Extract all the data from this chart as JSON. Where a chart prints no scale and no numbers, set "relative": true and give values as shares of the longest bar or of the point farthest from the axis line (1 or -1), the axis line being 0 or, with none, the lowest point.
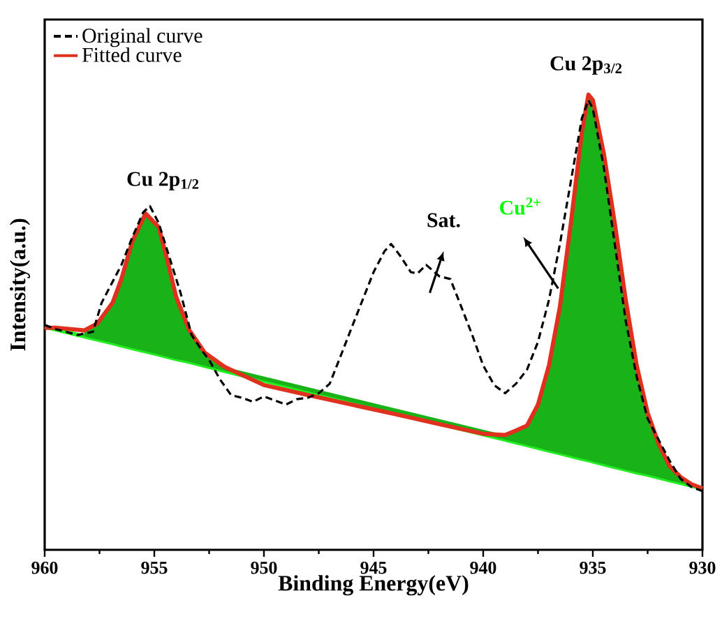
{
  "chart_data": {
    "type": "line",
    "relative": true,
    "xlabel": "Binding Energy(eV)",
    "ylabel": "Intensity(a.u.)",
    "xlim": [
      960,
      930
    ],
    "xticks": [
      960,
      955,
      950,
      945,
      940,
      935,
      930
    ],
    "legend": "top left",
    "marker": "none",
    "series": [
      {
        "color": "#22ee22",
        "line_style": "solid",
        "x": [
          960,
          958.2,
          957.6,
          956.9,
          956.5,
          956,
          955.4,
          954.8,
          954.4,
          954,
          953.4,
          952.7,
          951.8,
          939,
          938.5,
          938,
          937.5,
          937,
          936.5,
          936,
          935.5,
          935.2,
          935,
          934.5,
          934,
          933.5,
          933,
          932.5,
          932,
          931.5,
          931,
          930.5,
          930
        ],
        "values": [
          0.49,
          0.469,
          0.462,
          0.454,
          0.449,
          0.443,
          0.436,
          0.429,
          0.424,
          0.419,
          0.413,
          0.404,
          0.393,
          0.242,
          0.236,
          0.23,
          0.224,
          0.2178,
          0.212,
          0.206,
          0.2,
          0.197,
          0.194,
          0.188,
          0.182,
          0.176,
          0.17,
          0.165,
          0.159,
          0.1527,
          0.147,
          0.141,
          0.135
        ],
        "lower": [
          null,
          0.469,
          0.462,
          0.454,
          0.449,
          0.443,
          0.436,
          0.429,
          0.424,
          0.419,
          0.413,
          0.404,
          0.393,
          0.242,
          0.236,
          0.23,
          0.224,
          0.2178,
          0.212,
          0.206,
          0.2,
          0.197,
          0.194,
          0.188,
          0.182,
          0.176,
          0.17,
          0.165,
          0.159,
          0.1527,
          0.147,
          0.141,
          0.135
        ],
        "upper": [
          null,
          0.482,
          0.497,
          0.543,
          0.595,
          0.678,
          0.739,
          0.709,
          0.635,
          0.555,
          0.482,
          0.433,
          0.402,
          0.252,
          0.262,
          0.273,
          0.319,
          0.405,
          0.534,
          0.718,
          0.917,
          1.0,
          0.988,
          0.871,
          0.718,
          0.549,
          0.405,
          0.301,
          0.233,
          0.184,
          0.16,
          0.144,
          0.135
        ]
      },
      {
        "name": "Fitted curve",
        "color": "#e0301e",
        "line_style": "solid",
        "x": [
          960,
          959.5,
          958.2,
          957.6,
          956.9,
          956.5,
          956,
          955.4,
          954.8,
          954.4,
          954,
          953.4,
          952.7,
          951.8,
          950,
          948,
          946,
          944,
          942,
          940,
          939,
          938.5,
          938,
          937.5,
          937,
          936.5,
          936,
          935.5,
          935.2,
          935,
          934.5,
          934,
          933.5,
          933,
          932.5,
          932,
          931.5,
          931,
          930.5,
          930
        ],
        "values": [
          0.488,
          0.488,
          0.482,
          0.497,
          0.543,
          0.595,
          0.678,
          0.739,
          0.709,
          0.635,
          0.555,
          0.482,
          0.433,
          0.402,
          0.362,
          0.34,
          0.319,
          0.298,
          0.276,
          0.255,
          0.252,
          0.262,
          0.273,
          0.319,
          0.405,
          0.534,
          0.718,
          0.917,
          1.0,
          0.988,
          0.871,
          0.718,
          0.549,
          0.405,
          0.301,
          0.233,
          0.184,
          0.16,
          0.144,
          0.135
        ]
      },
      {
        "name": "Original curve",
        "color": "#000000",
        "line_style": "dashed",
        "x": [
          960,
          959.5,
          958.5,
          957.8,
          957.4,
          956.5,
          956,
          955.5,
          955.2,
          954.8,
          954.3,
          953.8,
          953.3,
          952.8,
          952.5,
          952,
          951.5,
          951,
          950.5,
          950,
          949,
          948.5,
          948,
          947.5,
          947,
          946.5,
          946,
          945.5,
          945,
          944.5,
          944.2,
          943.8,
          943.3,
          943,
          942.6,
          942,
          941.5,
          941,
          940.5,
          940,
          939.5,
          939,
          938.5,
          938,
          937.5,
          937,
          936.5,
          936,
          935.5,
          935.2,
          935,
          934.5,
          934,
          933.5,
          933,
          932.5,
          932,
          931.5,
          931,
          930.5,
          930
        ],
        "values": [
          0.494,
          0.485,
          0.472,
          0.479,
          0.543,
          0.626,
          0.687,
          0.742,
          0.755,
          0.718,
          0.641,
          0.564,
          0.472,
          0.436,
          0.417,
          0.374,
          0.34,
          0.334,
          0.325,
          0.337,
          0.319,
          0.331,
          0.334,
          0.344,
          0.365,
          0.426,
          0.488,
          0.549,
          0.61,
          0.656,
          0.672,
          0.647,
          0.61,
          0.607,
          0.626,
          0.601,
          0.595,
          0.534,
          0.472,
          0.405,
          0.362,
          0.344,
          0.365,
          0.396,
          0.457,
          0.549,
          0.672,
          0.81,
          0.948,
          0.988,
          0.969,
          0.84,
          0.672,
          0.503,
          0.38,
          0.288,
          0.242,
          0.196,
          0.156,
          0.138,
          0.129
        ]
      }
    ],
    "annotations": [
      "Cu 2p$_{1/2}$",
      "Cu 2p$_{3/2}$",
      "Sat.",
      "Cu$^{2+}$"
    ]
  }
}
